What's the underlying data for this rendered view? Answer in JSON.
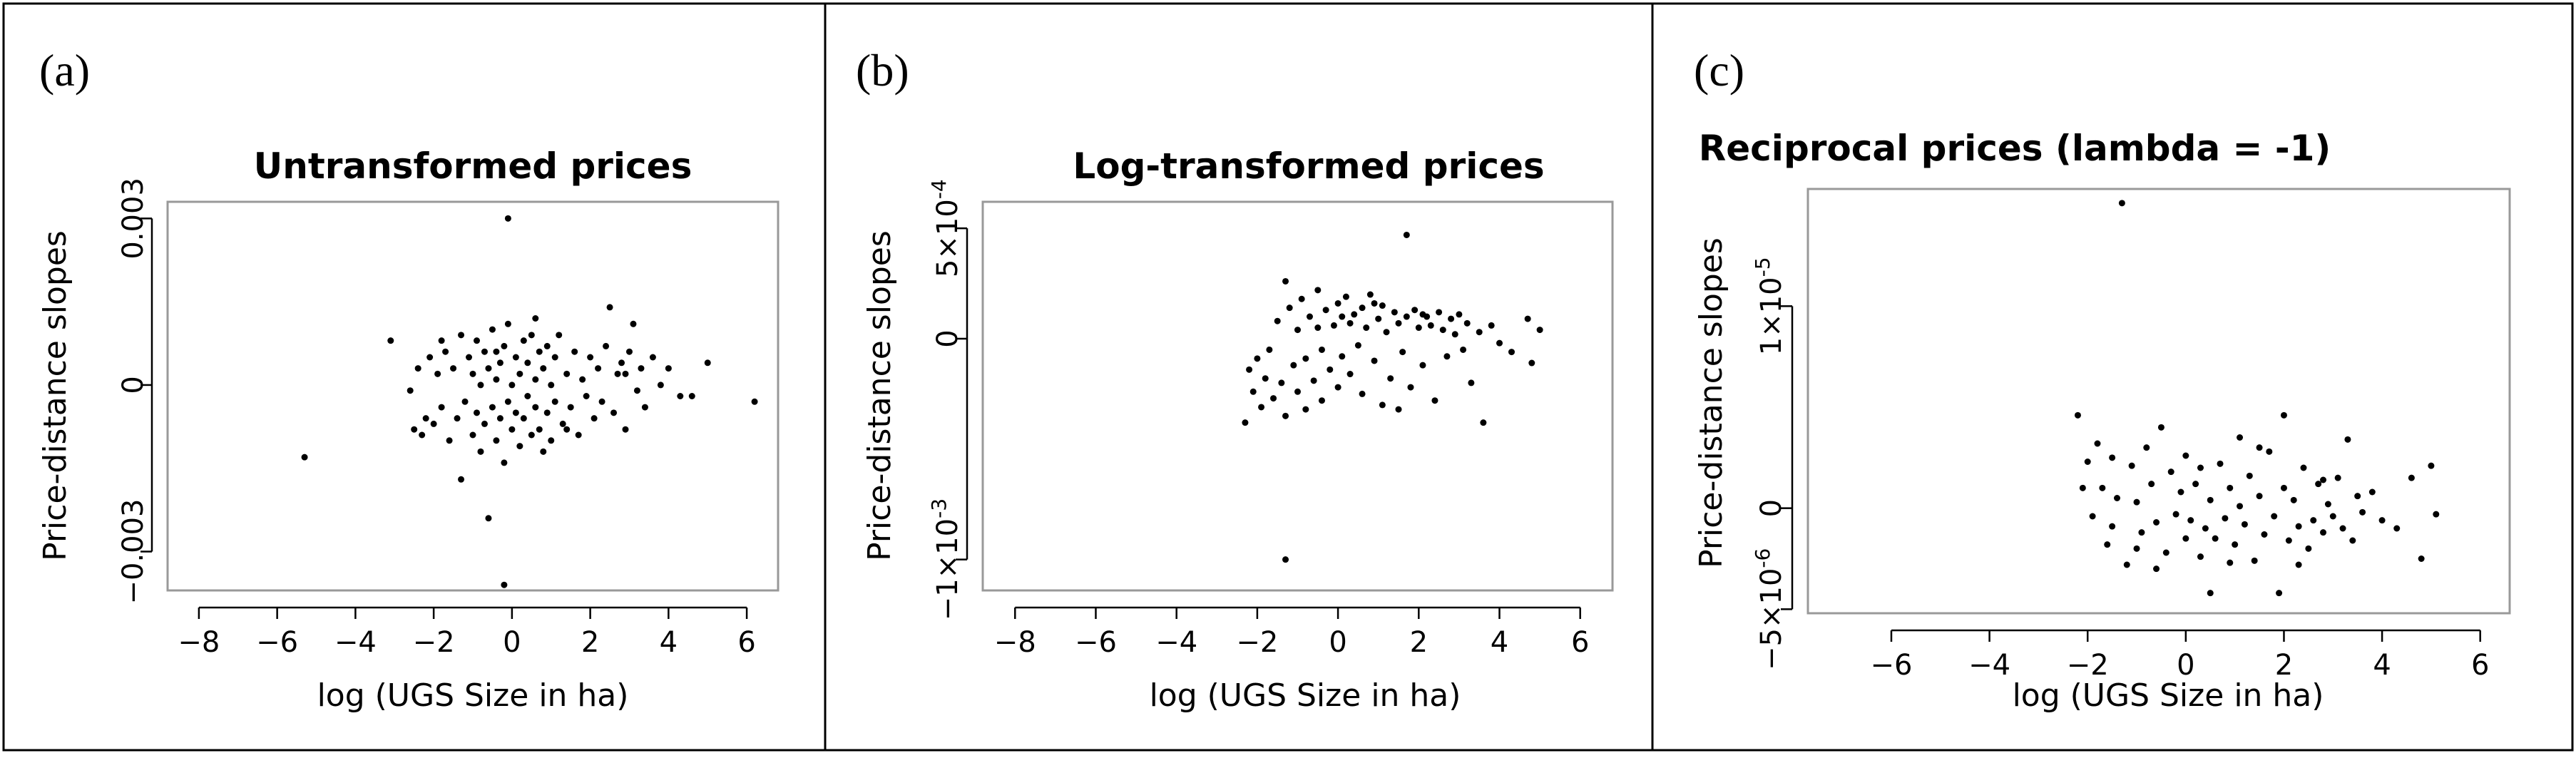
{
  "panels": [
    {
      "label": "(a)",
      "title": "Untransformed prices",
      "ylabel": "Price-distance slopes",
      "xlabel": "log (UGS Size in ha)",
      "xticks": [
        -8,
        -6,
        -4,
        -2,
        0,
        2,
        4,
        6
      ],
      "yticks": [
        {
          "v": 0.003,
          "base": "0.003",
          "exp": ""
        },
        {
          "v": 0,
          "base": "0",
          "exp": ""
        },
        {
          "v": -0.003,
          "base": "−0.003",
          "exp": ""
        }
      ]
    },
    {
      "label": "(b)",
      "title": "Log-transformed prices",
      "ylabel": "Price-distance slopes",
      "xlabel": "log (UGS Size in ha)",
      "xticks": [
        -8,
        -6,
        -4,
        -2,
        0,
        2,
        4,
        6
      ],
      "yticks": [
        {
          "v": 0.0005,
          "base": "5×10",
          "exp": "-4"
        },
        {
          "v": 0,
          "base": "0",
          "exp": ""
        },
        {
          "v": -0.001,
          "base": "−1×10",
          "exp": "-3"
        }
      ]
    },
    {
      "label": "(c)",
      "title": "Reciprocal prices (lambda = -1)",
      "ylabel": "Price-distance slopes",
      "xlabel": "log (UGS Size in ha)",
      "xticks": [
        -6,
        -4,
        -2,
        0,
        2,
        4,
        6
      ],
      "yticks": [
        {
          "v": 1e-05,
          "base": "1×10",
          "exp": "-5"
        },
        {
          "v": 0,
          "base": "0",
          "exp": ""
        },
        {
          "v": -5e-06,
          "base": "−5×10",
          "exp": "-6"
        }
      ]
    }
  ],
  "chart_data": [
    {
      "type": "scatter",
      "title": "Untransformed prices",
      "xlabel": "log (UGS Size in ha)",
      "ylabel": "Price-distance slopes",
      "xlim": [
        -8.8,
        6.8
      ],
      "ylim": [
        -0.0037,
        0.0033
      ],
      "grid": false,
      "points": [
        [
          -5.3,
          -0.0013
        ],
        [
          -3.1,
          0.0008
        ],
        [
          -2.6,
          -0.0001
        ],
        [
          -2.5,
          -0.0008
        ],
        [
          -2.4,
          0.0003
        ],
        [
          -2.2,
          -0.0006
        ],
        [
          -2.1,
          0.0005
        ],
        [
          -2.0,
          -0.0007
        ],
        [
          -1.9,
          0.0002
        ],
        [
          -1.8,
          -0.0004
        ],
        [
          -1.7,
          0.0006
        ],
        [
          -1.6,
          -0.001
        ],
        [
          -1.5,
          0.0003
        ],
        [
          -1.4,
          -0.0006
        ],
        [
          -1.3,
          0.0009
        ],
        [
          -1.3,
          -0.0017
        ],
        [
          -1.2,
          -0.0003
        ],
        [
          -1.1,
          0.0005
        ],
        [
          -1.0,
          -0.0009
        ],
        [
          -1.0,
          0.0002
        ],
        [
          -0.9,
          -0.0005
        ],
        [
          -0.9,
          0.0008
        ],
        [
          -0.8,
          -0.0012
        ],
        [
          -0.8,
          0.0
        ],
        [
          -0.7,
          0.0006
        ],
        [
          -0.7,
          -0.0007
        ],
        [
          -0.6,
          -0.0024
        ],
        [
          -0.6,
          0.0003
        ],
        [
          -0.5,
          -0.0004
        ],
        [
          -0.5,
          0.001
        ],
        [
          -0.4,
          -0.001
        ],
        [
          -0.4,
          0.0001
        ],
        [
          -0.3,
          -0.0006
        ],
        [
          -0.3,
          0.0004
        ],
        [
          -0.2,
          -0.0014
        ],
        [
          -0.2,
          0.0007
        ],
        [
          -0.1,
          -0.0003
        ],
        [
          -0.1,
          0.0011
        ],
        [
          0.0,
          -0.0008
        ],
        [
          0.0,
          0.0
        ],
        [
          -0.2,
          -0.0036
        ],
        [
          -0.1,
          0.003
        ],
        [
          0.1,
          0.0005
        ],
        [
          0.1,
          -0.0005
        ],
        [
          0.2,
          -0.0011
        ],
        [
          0.2,
          0.0002
        ],
        [
          0.3,
          0.0008
        ],
        [
          0.3,
          -0.0006
        ],
        [
          0.4,
          -0.0002
        ],
        [
          0.4,
          0.0004
        ],
        [
          0.5,
          -0.0009
        ],
        [
          0.5,
          0.0009
        ],
        [
          0.6,
          -0.0004
        ],
        [
          0.6,
          0.0001
        ],
        [
          0.7,
          0.0006
        ],
        [
          0.7,
          -0.0008
        ],
        [
          0.8,
          -0.0012
        ],
        [
          0.8,
          0.0003
        ],
        [
          0.9,
          -0.0005
        ],
        [
          0.9,
          0.0007
        ],
        [
          1.0,
          0.0
        ],
        [
          1.0,
          -0.001
        ],
        [
          1.1,
          0.0005
        ],
        [
          1.1,
          -0.0003
        ],
        [
          1.2,
          0.0009
        ],
        [
          1.3,
          -0.0007
        ],
        [
          1.4,
          0.0002
        ],
        [
          1.5,
          -0.0004
        ],
        [
          1.6,
          0.0006
        ],
        [
          1.7,
          -0.0009
        ],
        [
          1.8,
          0.0001
        ],
        [
          1.9,
          -0.0002
        ],
        [
          2.0,
          0.0005
        ],
        [
          2.1,
          -0.0006
        ],
        [
          2.2,
          0.0003
        ],
        [
          2.3,
          -0.0003
        ],
        [
          2.4,
          0.0007
        ],
        [
          2.5,
          0.0014
        ],
        [
          2.6,
          -0.0005
        ],
        [
          2.7,
          0.0002
        ],
        [
          2.8,
          0.0004
        ],
        [
          2.9,
          -0.0008
        ],
        [
          3.0,
          0.0006
        ],
        [
          3.1,
          0.0011
        ],
        [
          3.2,
          -0.0001
        ],
        [
          3.3,
          0.0003
        ],
        [
          3.4,
          -0.0004
        ],
        [
          3.6,
          0.0005
        ],
        [
          3.8,
          0.0
        ],
        [
          4.0,
          0.0003
        ],
        [
          4.3,
          -0.0002
        ],
        [
          4.6,
          -0.0002
        ],
        [
          5.0,
          0.0004
        ],
        [
          6.2,
          -0.0003
        ],
        [
          -2.3,
          -0.0009
        ],
        [
          -1.8,
          0.0008
        ],
        [
          -0.4,
          0.0006
        ],
        [
          0.6,
          0.0012
        ],
        [
          1.4,
          -0.0008
        ],
        [
          2.9,
          0.0002
        ]
      ]
    },
    {
      "type": "scatter",
      "title": "Log-transformed prices",
      "xlabel": "log (UGS Size in ha)",
      "ylabel": "Price-distance slopes",
      "xlim": [
        -8.8,
        6.8
      ],
      "ylim": [
        -0.00114,
        0.00062
      ],
      "grid": false,
      "points": [
        [
          -2.3,
          -0.00038
        ],
        [
          -2.2,
          -0.00014
        ],
        [
          -2.1,
          -0.00024
        ],
        [
          -2.0,
          -9e-05
        ],
        [
          -1.9,
          -0.00031
        ],
        [
          -1.8,
          -0.00018
        ],
        [
          -1.7,
          -5e-05
        ],
        [
          -1.6,
          -0.00027
        ],
        [
          -1.5,
          8e-05
        ],
        [
          -1.4,
          -0.0002
        ],
        [
          -1.3,
          0.00026
        ],
        [
          -1.3,
          -0.00035
        ],
        [
          -1.3,
          -0.001
        ],
        [
          -1.2,
          0.00014
        ],
        [
          -1.1,
          -0.00012
        ],
        [
          -1.0,
          4e-05
        ],
        [
          -1.0,
          -0.00024
        ],
        [
          -0.9,
          0.00018
        ],
        [
          -0.8,
          -9e-05
        ],
        [
          -0.8,
          -0.00032
        ],
        [
          -0.7,
          0.0001
        ],
        [
          -0.6,
          -0.00019
        ],
        [
          -0.5,
          0.00022
        ],
        [
          -0.4,
          -5e-05
        ],
        [
          -0.4,
          -0.00028
        ],
        [
          -0.3,
          0.00013
        ],
        [
          -0.2,
          -0.00014
        ],
        [
          -0.1,
          6e-05
        ],
        [
          0.0,
          0.00016
        ],
        [
          0.0,
          -0.00022
        ],
        [
          0.1,
          0.0001
        ],
        [
          0.1,
          -8e-05
        ],
        [
          0.2,
          0.00019
        ],
        [
          0.3,
          -0.00016
        ],
        [
          0.3,
          7e-05
        ],
        [
          0.4,
          0.00011
        ],
        [
          0.5,
          -3e-05
        ],
        [
          0.6,
          0.00014
        ],
        [
          0.6,
          -0.00025
        ],
        [
          0.7,
          5e-05
        ],
        [
          0.8,
          0.0002
        ],
        [
          0.9,
          -0.0001
        ],
        [
          1.0,
          9e-05
        ],
        [
          1.1,
          -0.0003
        ],
        [
          1.1,
          0.00015
        ],
        [
          1.2,
          3e-05
        ],
        [
          1.3,
          -0.00018
        ],
        [
          1.4,
          0.00012
        ],
        [
          1.5,
          7e-05
        ],
        [
          1.6,
          -6e-05
        ],
        [
          1.7,
          0.00047
        ],
        [
          1.7,
          0.0001
        ],
        [
          1.8,
          -0.00022
        ],
        [
          1.9,
          0.00013
        ],
        [
          2.0,
          5e-05
        ],
        [
          2.1,
          -0.00012
        ],
        [
          2.2,
          0.0001
        ],
        [
          2.3,
          6e-05
        ],
        [
          2.4,
          -0.00028
        ],
        [
          2.5,
          0.00012
        ],
        [
          2.6,
          4e-05
        ],
        [
          2.7,
          -8e-05
        ],
        [
          2.8,
          9e-05
        ],
        [
          2.9,
          2e-05
        ],
        [
          3.0,
          0.00011
        ],
        [
          3.1,
          -5e-05
        ],
        [
          3.2,
          7e-05
        ],
        [
          3.3,
          -0.0002
        ],
        [
          3.5,
          3e-05
        ],
        [
          3.6,
          -0.00038
        ],
        [
          3.8,
          6e-05
        ],
        [
          4.0,
          -2e-05
        ],
        [
          4.3,
          -6e-05
        ],
        [
          4.7,
          9e-05
        ],
        [
          4.8,
          -0.00011
        ],
        [
          5.0,
          4e-05
        ],
        [
          -0.5,
          5e-05
        ],
        [
          0.9,
          0.00016
        ],
        [
          2.1,
          0.00011
        ],
        [
          1.5,
          -0.00032
        ]
      ]
    },
    {
      "type": "scatter",
      "title": "Reciprocal prices (lambda = -1)",
      "xlabel": "log (UGS Size in ha)",
      "ylabel": "Price-distance slopes",
      "xlim": [
        -7.7,
        6.6
      ],
      "ylim": [
        -5.2e-06,
        1.58e-05
      ],
      "grid": false,
      "points": [
        [
          -2.2,
          4.6e-06
        ],
        [
          -2.0,
          2.3e-06
        ],
        [
          -1.9,
          -4e-07
        ],
        [
          -1.8,
          3.2e-06
        ],
        [
          -1.7,
          1e-06
        ],
        [
          -1.6,
          -1.8e-06
        ],
        [
          -1.5,
          2.5e-06
        ],
        [
          -1.4,
          5e-07
        ],
        [
          -1.3,
          1.51e-05
        ],
        [
          -1.2,
          -2.8e-06
        ],
        [
          -1.1,
          2.1e-06
        ],
        [
          -1.0,
          3e-07
        ],
        [
          -0.9,
          -1.2e-06
        ],
        [
          -0.8,
          3e-06
        ],
        [
          -0.7,
          1.2e-06
        ],
        [
          -0.6,
          -7e-07
        ],
        [
          -0.5,
          4e-06
        ],
        [
          -0.4,
          -2.2e-06
        ],
        [
          -0.3,
          1.8e-06
        ],
        [
          -0.2,
          -3e-07
        ],
        [
          -0.1,
          8e-07
        ],
        [
          0.0,
          -1.5e-06
        ],
        [
          0.0,
          2.6e-06
        ],
        [
          0.1,
          -6e-07
        ],
        [
          0.2,
          1.2e-06
        ],
        [
          0.3,
          -2.4e-06
        ],
        [
          0.4,
          -1e-06
        ],
        [
          0.5,
          4e-07
        ],
        [
          0.5,
          -4.2e-06
        ],
        [
          0.6,
          -1.5e-06
        ],
        [
          0.7,
          2.2e-06
        ],
        [
          0.8,
          -5e-07
        ],
        [
          0.9,
          1e-06
        ],
        [
          1.0,
          -1.8e-06
        ],
        [
          1.1,
          3.5e-06
        ],
        [
          1.2,
          -8e-07
        ],
        [
          1.3,
          1.6e-06
        ],
        [
          1.4,
          -2.6e-06
        ],
        [
          1.5,
          6e-07
        ],
        [
          1.6,
          -1.3e-06
        ],
        [
          1.7,
          2.8e-06
        ],
        [
          1.8,
          -4e-07
        ],
        [
          1.9,
          -4.2e-06
        ],
        [
          2.0,
          4.6e-06
        ],
        [
          2.0,
          1e-06
        ],
        [
          2.1,
          -1.6e-06
        ],
        [
          2.2,
          4e-07
        ],
        [
          2.3,
          -9e-07
        ],
        [
          2.4,
          2e-06
        ],
        [
          2.5,
          -2e-06
        ],
        [
          2.6,
          -6e-07
        ],
        [
          2.7,
          1.2e-06
        ],
        [
          2.8,
          -1.2e-06
        ],
        [
          2.9,
          2e-07
        ],
        [
          3.0,
          -4e-07
        ],
        [
          3.1,
          1.5e-06
        ],
        [
          3.2,
          -1e-06
        ],
        [
          3.3,
          3.4e-06
        ],
        [
          3.4,
          -1.6e-06
        ],
        [
          3.6,
          -2e-07
        ],
        [
          3.8,
          8e-07
        ],
        [
          4.0,
          -6e-07
        ],
        [
          4.3,
          -1e-06
        ],
        [
          4.6,
          1.5e-06
        ],
        [
          4.8,
          -2.5e-06
        ],
        [
          5.0,
          2.1e-06
        ],
        [
          5.1,
          -3e-07
        ],
        [
          -2.1,
          1e-06
        ],
        [
          -1.0,
          -2e-06
        ],
        [
          0.3,
          2e-06
        ],
        [
          1.5,
          3e-06
        ],
        [
          2.8,
          1.4e-06
        ],
        [
          -0.6,
          -3e-06
        ],
        [
          0.9,
          -2.7e-06
        ],
        [
          2.3,
          -2.8e-06
        ],
        [
          -1.5,
          -9e-07
        ],
        [
          1.1,
          1e-07
        ],
        [
          3.5,
          6e-07
        ]
      ]
    }
  ]
}
